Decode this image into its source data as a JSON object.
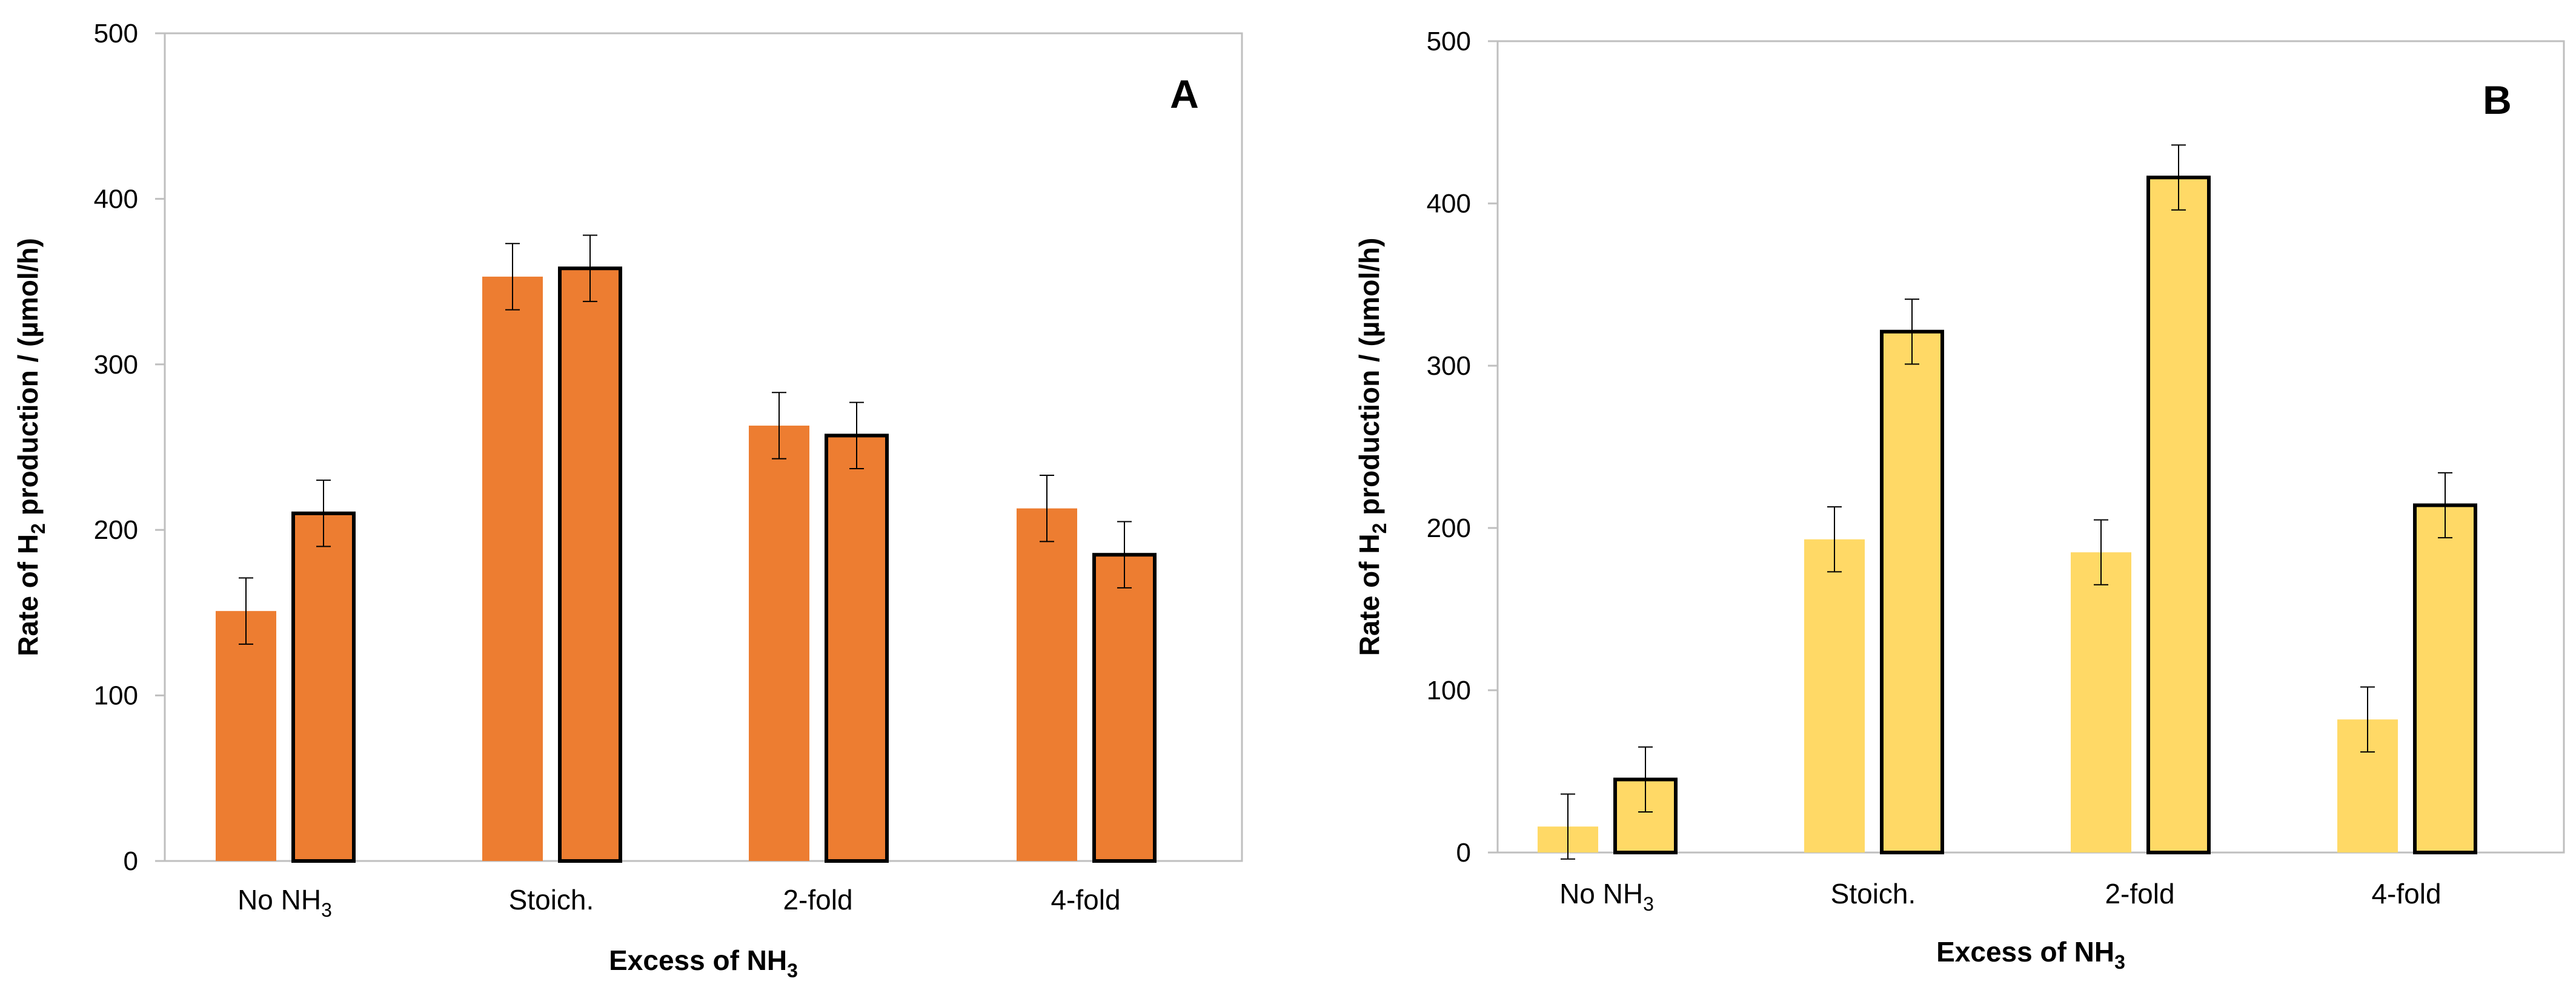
{
  "chart_data": [
    {
      "panel": "A",
      "type": "bar",
      "categories": [
        "No NH",
        "Stoich.",
        "2-fold",
        "4-fold"
      ],
      "category_subscripts": [
        "3",
        "",
        "",
        ""
      ],
      "xlabel": "Excess of NH",
      "xlabel_subscript": "3",
      "ylabel_pre": "Rate of H",
      "ylabel_subscript": "2",
      "ylabel_post": " production / (µmol/h)",
      "ylim": [
        0,
        500
      ],
      "yticks": [
        0,
        100,
        200,
        300,
        400,
        500
      ],
      "series": [
        {
          "name": "series-1",
          "outlined": false,
          "color": "#ED7D31",
          "values": [
            151,
            353,
            263,
            213
          ],
          "errors": [
            20,
            20,
            20,
            20
          ]
        },
        {
          "name": "series-2",
          "outlined": true,
          "color": "#ED7D31",
          "values": [
            210,
            358,
            257,
            185
          ],
          "errors": [
            20,
            20,
            20,
            20
          ]
        }
      ]
    },
    {
      "panel": "B",
      "type": "bar",
      "categories": [
        "No NH",
        "Stoich.",
        "2-fold",
        "4-fold"
      ],
      "category_subscripts": [
        "3",
        "",
        "",
        ""
      ],
      "xlabel": "Excess of NH",
      "xlabel_subscript": "3",
      "ylabel_pre": "Rate of H",
      "ylabel_subscript": "2",
      "ylabel_post": " production / (µmol/h)",
      "ylim": [
        0,
        500
      ],
      "yticks": [
        0,
        100,
        200,
        300,
        400,
        500
      ],
      "series": [
        {
          "name": "series-1",
          "outlined": false,
          "color": "#FFD966",
          "values": [
            16,
            193,
            185,
            82
          ],
          "errors": [
            20,
            20,
            20,
            20
          ]
        },
        {
          "name": "series-2",
          "outlined": true,
          "color": "#FFD966",
          "values": [
            45,
            321,
            416,
            214
          ],
          "errors": [
            20,
            20,
            20,
            20
          ]
        }
      ]
    }
  ]
}
